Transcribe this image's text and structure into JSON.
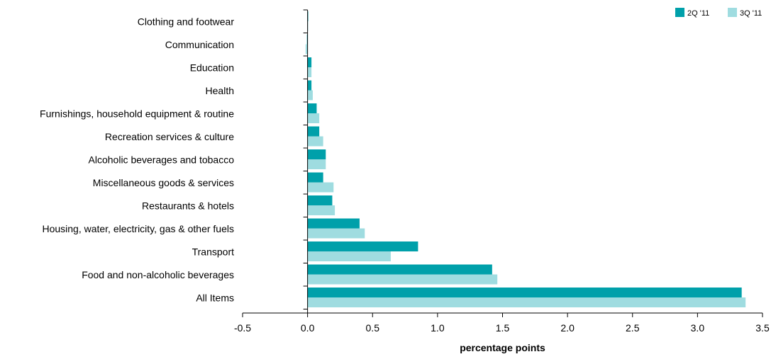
{
  "chart_data": {
    "type": "bar",
    "orientation": "horizontal",
    "categories": [
      "Clothing and footwear",
      "Communication",
      "Education",
      "Health",
      "Furnishings, household equipment & routine",
      "Recreation services & culture",
      "Alcoholic beverages and tobacco",
      "Miscellaneous goods & services",
      "Restaurants & hotels",
      "Housing, water, electricity, gas & other fuels",
      "Transport ",
      "Food and non-alcoholic beverages",
      "All Items"
    ],
    "series": [
      {
        "name": "2Q '11",
        "color": "#00A0AA",
        "values": [
          0.005,
          -0.005,
          0.03,
          0.03,
          0.07,
          0.09,
          0.14,
          0.12,
          0.19,
          0.4,
          0.85,
          1.42,
          3.34
        ]
      },
      {
        "name": "3Q '11",
        "color": "#9FDCE0",
        "values": [
          0.002,
          -0.015,
          0.03,
          0.04,
          0.09,
          0.12,
          0.14,
          0.2,
          0.21,
          0.44,
          0.64,
          1.46,
          3.37
        ]
      }
    ],
    "xlabel": "percentage points",
    "ylabel": "",
    "title": "",
    "xlim": [
      -0.5,
      3.5
    ],
    "xticks": [
      -0.5,
      0.0,
      0.5,
      1.0,
      1.5,
      2.0,
      2.5,
      3.0,
      3.5
    ],
    "xtick_labels": [
      "-0.5",
      "0.0",
      "0.5",
      "1.0",
      "1.5",
      "2.0",
      "2.5",
      "3.0",
      "3.5"
    ],
    "grid": false,
    "legend_position": "top-right"
  }
}
